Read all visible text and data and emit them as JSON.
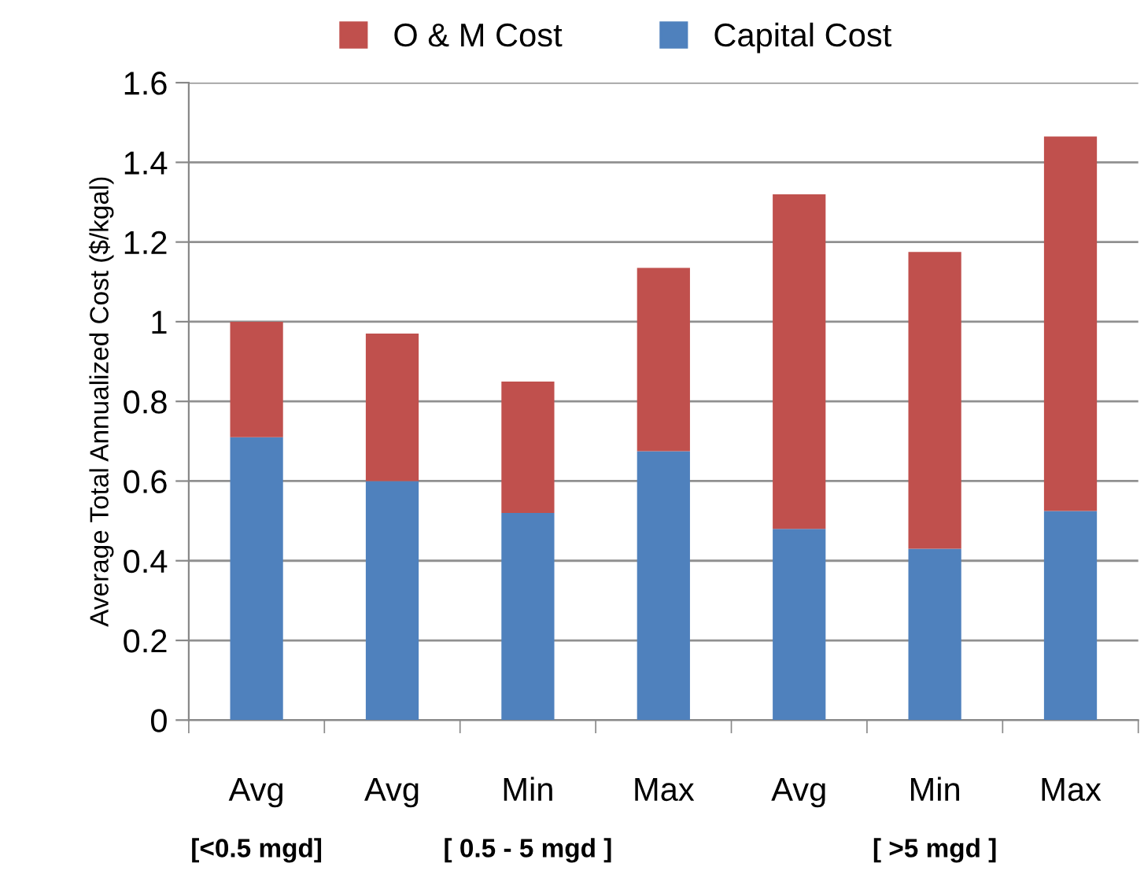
{
  "chart_data": {
    "type": "bar",
    "stacked": true,
    "ylabel": "Average Total Annualized Cost ($/kgal)",
    "categories": [
      "Avg",
      "Avg",
      "Min",
      "Max",
      "Avg",
      "Min",
      "Max"
    ],
    "series": [
      {
        "name": "Capital Cost",
        "color": "#4f81bd",
        "values": [
          0.71,
          0.6,
          0.52,
          0.675,
          0.48,
          0.43,
          0.525
        ]
      },
      {
        "name": "O & M Cost",
        "color": "#c0504d",
        "values": [
          0.29,
          0.37,
          0.33,
          0.46,
          0.84,
          0.745,
          0.94
        ]
      }
    ],
    "ylim": [
      0,
      1.6
    ],
    "yticks": [
      0,
      0.2,
      0.4,
      0.6,
      0.8,
      1,
      1.2,
      1.4,
      1.6
    ],
    "grid": "y",
    "legend": "top",
    "annotations": [
      "[<0.5 mgd]",
      "[ 0.5 - 5 mgd ]",
      "[ >5 mgd ]"
    ]
  }
}
